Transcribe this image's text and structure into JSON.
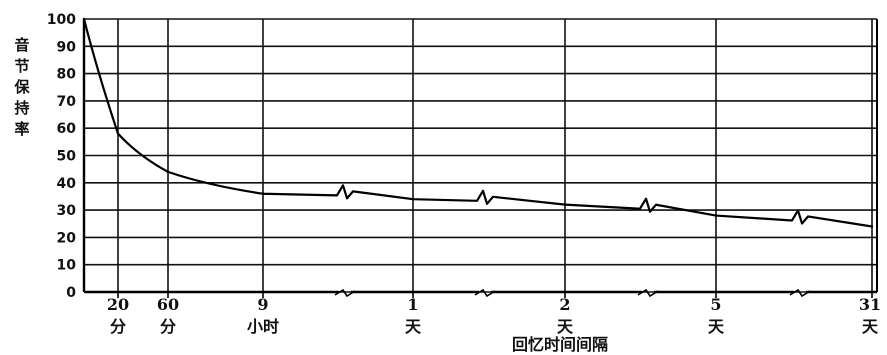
{
  "chart_data": {
    "type": "line",
    "title": "",
    "ylabel": "音节保持率",
    "xlabel": "回忆时间间隔",
    "ylim": [
      0,
      100
    ],
    "yticks": [
      0,
      10,
      20,
      30,
      40,
      50,
      60,
      70,
      80,
      90,
      100
    ],
    "grid": true,
    "x_ticks": [
      {
        "line1": "20",
        "line2": "分"
      },
      {
        "line1": "60",
        "line2": "分"
      },
      {
        "line1": "9",
        "line2": "小时"
      },
      {
        "line1": "1",
        "line2": "天"
      },
      {
        "line1": "2",
        "line2": "天"
      },
      {
        "line1": "5",
        "line2": "天"
      },
      {
        "line1": "31",
        "line2": "天"
      }
    ],
    "series": [
      {
        "values": [
          {
            "x": "0",
            "y": 100
          },
          {
            "x": "20 分",
            "y": 58
          },
          {
            "x": "60 分",
            "y": 44
          },
          {
            "x": "9 小时",
            "y": 36
          },
          {
            "x": "1 天",
            "y": 34
          },
          {
            "x": "2 天",
            "y": 32
          },
          {
            "x": "5 天",
            "y": 28
          },
          {
            "x": "31 天",
            "y": 24
          }
        ]
      }
    ]
  }
}
